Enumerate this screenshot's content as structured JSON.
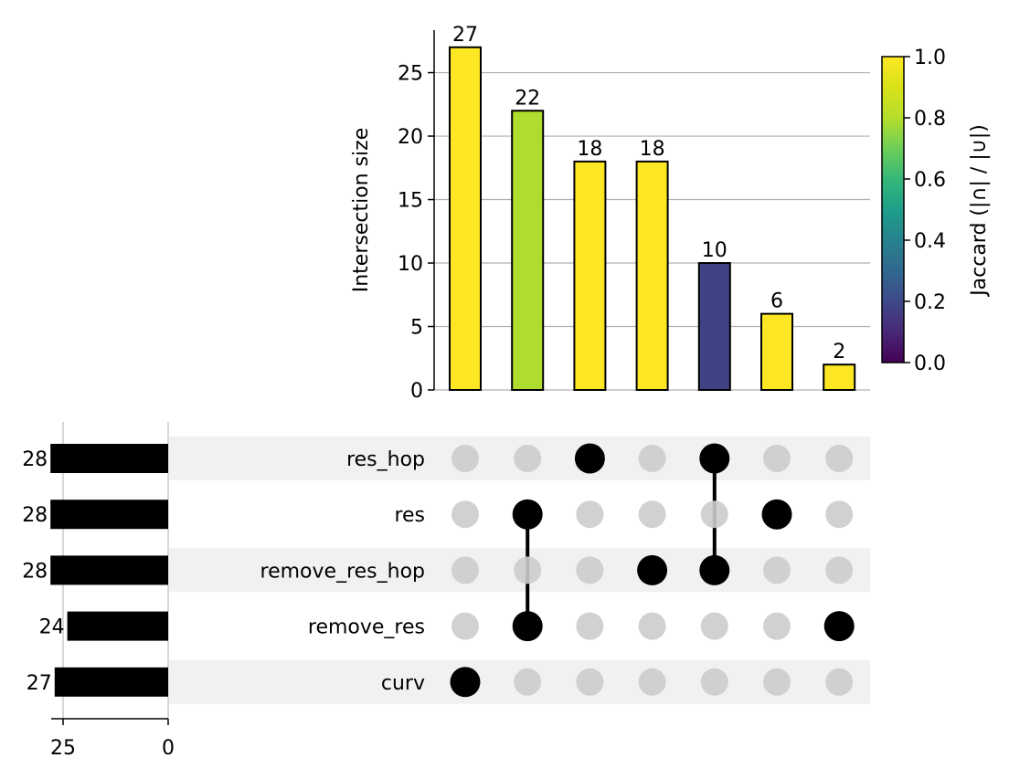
{
  "chart_data": {
    "type": "bar",
    "title": "",
    "ylabel": "Intersection size",
    "ylim": [
      0,
      28.35
    ],
    "yticks": [
      0,
      5,
      10,
      15,
      20,
      25
    ],
    "grid": true,
    "sets": [
      "res_hop",
      "res",
      "remove_res_hop",
      "remove_res",
      "curv"
    ],
    "set_sizes": [
      28,
      28,
      28,
      24,
      27
    ],
    "set_size_ticks": [
      25,
      0
    ],
    "intersections": [
      {
        "members": [
          "curv"
        ],
        "size": 27,
        "jaccard": 1.0
      },
      {
        "members": [
          "res",
          "remove_res"
        ],
        "size": 22,
        "jaccard": 0.79
      },
      {
        "members": [
          "res_hop"
        ],
        "size": 18,
        "jaccard": 1.0
      },
      {
        "members": [
          "remove_res_hop"
        ],
        "size": 18,
        "jaccard": 1.0
      },
      {
        "members": [
          "res_hop",
          "remove_res_hop"
        ],
        "size": 10,
        "jaccard": 0.18
      },
      {
        "members": [
          "res"
        ],
        "size": 6,
        "jaccard": 1.0
      },
      {
        "members": [
          "remove_res"
        ],
        "size": 2,
        "jaccard": 1.0
      }
    ],
    "colorbar": {
      "label": "Jaccard (|∩| / |∪|)",
      "colormap": "viridis",
      "range": [
        0.0,
        1.0
      ],
      "ticks": [
        "0.0",
        "0.2",
        "0.4",
        "0.6",
        "0.8",
        "1.0"
      ]
    },
    "colors": {
      "bar_outline": "#000000",
      "dot_active": "#000000",
      "dot_inactive": "#cccccc",
      "row_shade": "#f1f1f1",
      "grid": "#b0b0b0"
    }
  }
}
